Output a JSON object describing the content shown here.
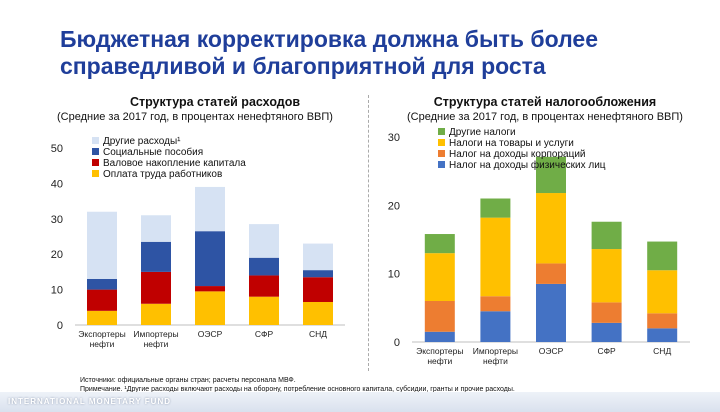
{
  "slide": {
    "title": "Бюджетная корректировка должна быть более справедливой и благоприятной для роста",
    "source": "Источники: официальные органы стран; расчеты персонала МВФ.",
    "note": "Примечание. ¹Другие расходы включают расходы на оборону, потребление основного капитала, субсидии, гранты и прочие расходы.",
    "org": "INTERNATIONAL MONETARY FUND"
  },
  "colors": {
    "title": "#1f3e9a",
    "light_blue": "#d6e2f3",
    "dark_blue": "#2e54a4",
    "red": "#c00000",
    "yellow": "#ffc000",
    "green": "#70ad47",
    "orange": "#ed7d31",
    "blue": "#4472c4"
  },
  "chart_data": [
    {
      "type": "bar",
      "stacked": true,
      "title": "Структура статей расходов",
      "subtitle": "(Средние за 2017 год, в процентах ненефтяного ВВП)",
      "categories": [
        "Экспортеры нефти",
        "Импортеры нефти",
        "ОЭСР",
        "СФР",
        "СНД"
      ],
      "ylim": [
        0,
        50
      ],
      "yticks": [
        0,
        10,
        20,
        30,
        40,
        50
      ],
      "legend_position": "top-left",
      "series": [
        {
          "name": "Оплата труда работников",
          "color": "#ffc000",
          "values": [
            4,
            6,
            9.5,
            8,
            6.5
          ]
        },
        {
          "name": "Валовое накопление капитала",
          "color": "#c00000",
          "values": [
            6,
            9,
            1.5,
            6,
            7
          ]
        },
        {
          "name": "Социальные пособия",
          "color": "#2e54a4",
          "values": [
            3,
            8.5,
            15.5,
            5,
            2
          ]
        },
        {
          "name": "Другие расходы¹",
          "color": "#d6e2f3",
          "values": [
            19,
            7.5,
            12.5,
            9.5,
            7.5
          ]
        }
      ]
    },
    {
      "type": "bar",
      "stacked": true,
      "title": "Структура статей налогообложения",
      "subtitle": "(Средние за 2017 год, в процентах ненефтяного ВВП)",
      "categories": [
        "Экспортеры нефти",
        "Импортеры нефти",
        "ОЭСР",
        "СФР",
        "СНД"
      ],
      "ylim": [
        0,
        30
      ],
      "yticks": [
        0,
        10,
        20,
        30
      ],
      "legend_position": "top-left",
      "series": [
        {
          "name": "Налог на доходы физических лиц",
          "color": "#4472c4",
          "values": [
            1.5,
            4.5,
            8.5,
            2.8,
            2
          ]
        },
        {
          "name": "Налог на доходы корпораций",
          "color": "#ed7d31",
          "values": [
            4.5,
            2.2,
            3,
            3,
            2.2
          ]
        },
        {
          "name": "Налоги на товары и услуги",
          "color": "#ffc000",
          "values": [
            7,
            11.5,
            10.3,
            7.8,
            6.3
          ]
        },
        {
          "name": "Другие налоги",
          "color": "#70ad47",
          "values": [
            2.8,
            2.8,
            5.3,
            4,
            4.2
          ]
        }
      ]
    }
  ]
}
